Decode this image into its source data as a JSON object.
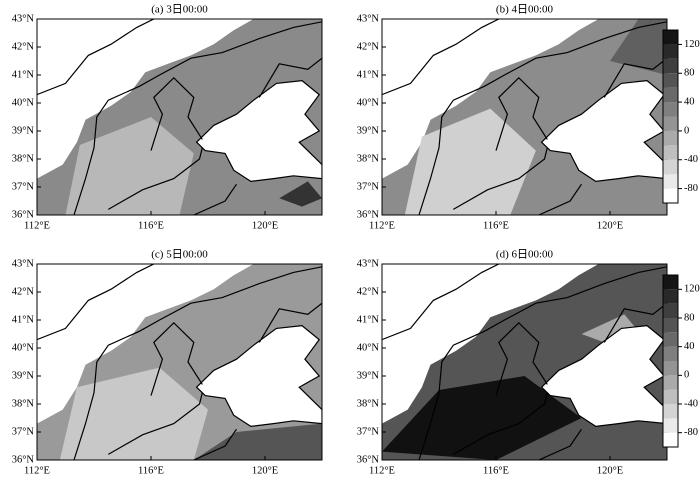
{
  "map": {
    "xlim": [
      112,
      122
    ],
    "ylim": [
      36,
      43
    ],
    "xticks": [
      {
        "value": 112,
        "label": "112°E"
      },
      {
        "value": 116,
        "label": "116°E"
      },
      {
        "value": 120,
        "label": "120°E"
      }
    ],
    "yticks": [
      {
        "value": 36,
        "label": "36°N"
      },
      {
        "value": 37,
        "label": "37°N"
      },
      {
        "value": 38,
        "label": "38°N"
      },
      {
        "value": 39,
        "label": "39°N"
      },
      {
        "value": 40,
        "label": "40°N"
      },
      {
        "value": 41,
        "label": "41°N"
      },
      {
        "value": 42,
        "label": "42°N"
      },
      {
        "value": 43,
        "label": "43°N"
      }
    ],
    "panels": [
      {
        "title": "(a) 3日00:00"
      },
      {
        "title": "(b) 4日00:00"
      },
      {
        "title": "(c) 5日00:00"
      },
      {
        "title": "(d) 6日00:00"
      }
    ],
    "colorbar": {
      "lim": [
        -100,
        140
      ],
      "ticks": [
        120,
        80,
        40,
        0,
        -40,
        -80
      ]
    }
  }
}
